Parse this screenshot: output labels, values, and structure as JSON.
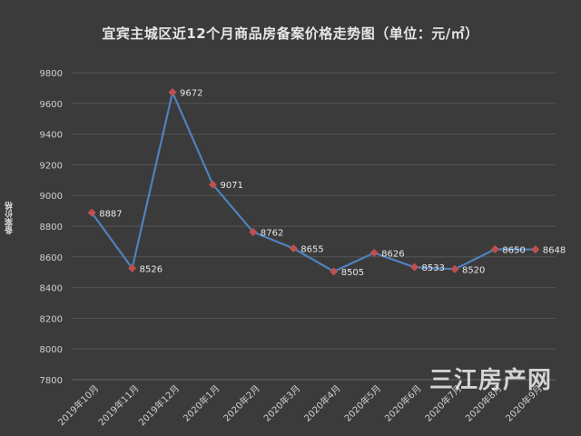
{
  "chart_data": {
    "type": "line",
    "title": "宜宾主城区近12个月商品房备案价格走势图（单位：元/㎡）",
    "ylabel": "备案价格",
    "xlabel": "",
    "categories": [
      "2019年10月",
      "2019年11月",
      "2019年12月",
      "2020年1月",
      "2020年2月",
      "2020年3月",
      "2020年4月",
      "2020年5月",
      "2020年6月",
      "2020年7月",
      "2020年8月",
      "2020年9月"
    ],
    "series": [
      {
        "values": [
          8887,
          8526,
          9672,
          9071,
          8762,
          8655,
          8505,
          8626,
          8533,
          8520,
          8650,
          8648
        ]
      }
    ],
    "ylim": [
      7800,
      9800
    ],
    "yticks": [
      7800,
      8000,
      8200,
      8400,
      8600,
      8800,
      9000,
      9200,
      9400,
      9600,
      9800
    ],
    "grid": true,
    "legend": "none"
  },
  "colors": {
    "background": "#3b3b3b",
    "line": "#4f81bd",
    "marker": "#c0504d",
    "grid": "#555555"
  },
  "watermark": "三江房产网"
}
